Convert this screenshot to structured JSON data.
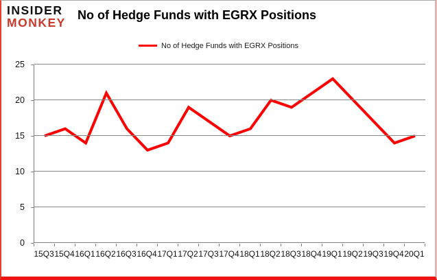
{
  "logo": {
    "line1": "INSIDER",
    "line2": "MONKEY"
  },
  "header": {
    "title": "No of Hedge Funds with EGRX Positions"
  },
  "legend": {
    "label": "No of Hedge Funds with EGRX Positions"
  },
  "colors": {
    "series_line": "#ff0000",
    "grid": "#898989",
    "logo_black": "#0f0f0f",
    "logo_red": "#cb392b",
    "frame_bottom": "#ee1414",
    "frame_left": "#e8402c",
    "frame_right": "#f2b6b2",
    "frame_top": "#a8a8a8"
  },
  "chart_data": {
    "type": "line",
    "title": "No of Hedge Funds with EGRX Positions",
    "categories": [
      "15Q3",
      "15Q4",
      "16Q1",
      "16Q2",
      "16Q3",
      "16Q4",
      "17Q1",
      "17Q2",
      "17Q3",
      "17Q4",
      "18Q1",
      "18Q2",
      "18Q3",
      "18Q4",
      "19Q1",
      "19Q2",
      "19Q3",
      "19Q4",
      "20Q1"
    ],
    "series": [
      {
        "name": "No of Hedge Funds with EGRX Positions",
        "color": "#ff0000",
        "values": [
          15,
          16,
          14,
          21,
          16,
          13,
          14,
          19,
          17,
          15,
          16,
          20,
          19,
          21,
          23,
          20,
          17,
          14,
          15
        ]
      }
    ],
    "xlabel": "",
    "ylabel": "",
    "ylim": [
      0,
      25
    ],
    "yticks": [
      0,
      5,
      10,
      15,
      20,
      25
    ],
    "grid": true,
    "legend_position": "top-center"
  }
}
